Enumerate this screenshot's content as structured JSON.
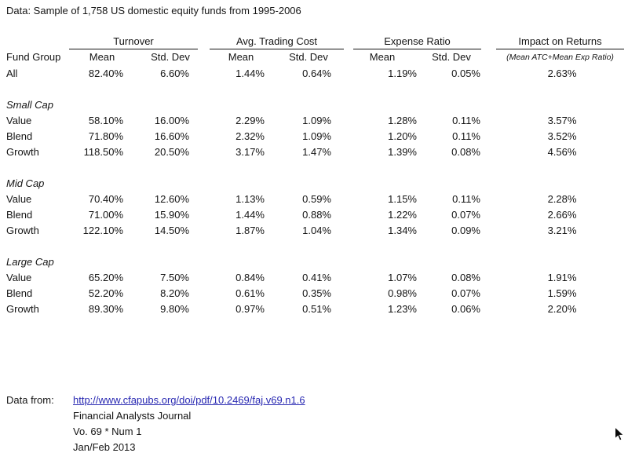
{
  "title": "Data: Sample of 1,758 US domestic equity funds from 1995-2006",
  "table": {
    "row_header": "Fund Group",
    "groups": [
      {
        "label": "Turnover",
        "sub": [
          "Mean",
          "Std. Dev"
        ]
      },
      {
        "label": "Avg. Trading Cost",
        "sub": [
          "Mean",
          "Std. Dev"
        ]
      },
      {
        "label": "Expense Ratio",
        "sub": [
          "Mean",
          "Std. Dev"
        ]
      },
      {
        "label": "Impact on Returns",
        "sub": [
          "(Mean ATC+Mean Exp Ratio)"
        ]
      }
    ],
    "rows": [
      {
        "type": "data",
        "label": "All",
        "values": [
          "82.40%",
          "6.60%",
          "1.44%",
          "0.64%",
          "1.19%",
          "0.05%",
          "2.63%"
        ]
      },
      {
        "type": "spacer"
      },
      {
        "type": "section",
        "label": "Small Cap"
      },
      {
        "type": "data",
        "label": "Value",
        "values": [
          "58.10%",
          "16.00%",
          "2.29%",
          "1.09%",
          "1.28%",
          "0.11%",
          "3.57%"
        ]
      },
      {
        "type": "data",
        "label": "Blend",
        "values": [
          "71.80%",
          "16.60%",
          "2.32%",
          "1.09%",
          "1.20%",
          "0.11%",
          "3.52%"
        ]
      },
      {
        "type": "data",
        "label": "Growth",
        "values": [
          "118.50%",
          "20.50%",
          "3.17%",
          "1.47%",
          "1.39%",
          "0.08%",
          "4.56%"
        ]
      },
      {
        "type": "spacer"
      },
      {
        "type": "section",
        "label": "Mid Cap"
      },
      {
        "type": "data",
        "label": "Value",
        "values": [
          "70.40%",
          "12.60%",
          "1.13%",
          "0.59%",
          "1.15%",
          "0.11%",
          "2.28%"
        ]
      },
      {
        "type": "data",
        "label": "Blend",
        "values": [
          "71.00%",
          "15.90%",
          "1.44%",
          "0.88%",
          "1.22%",
          "0.07%",
          "2.66%"
        ]
      },
      {
        "type": "data",
        "label": "Growth",
        "values": [
          "122.10%",
          "14.50%",
          "1.87%",
          "1.04%",
          "1.34%",
          "0.09%",
          "3.21%"
        ]
      },
      {
        "type": "spacer"
      },
      {
        "type": "section",
        "label": "Large Cap"
      },
      {
        "type": "data",
        "label": "Value",
        "values": [
          "65.20%",
          "7.50%",
          "0.84%",
          "0.41%",
          "1.07%",
          "0.08%",
          "1.91%"
        ]
      },
      {
        "type": "data",
        "label": "Blend",
        "values": [
          "52.20%",
          "8.20%",
          "0.61%",
          "0.35%",
          "0.98%",
          "0.07%",
          "1.59%"
        ]
      },
      {
        "type": "data",
        "label": "Growth",
        "values": [
          "89.30%",
          "9.80%",
          "0.97%",
          "0.51%",
          "1.23%",
          "0.06%",
          "2.20%"
        ]
      }
    ]
  },
  "footer": {
    "label": "Data from:",
    "link": "http://www.cfapubs.org/doi/pdf/10.2469/faj.v69.n1.6",
    "lines": [
      "Financial Analysts Journal",
      "Vo. 69 * Num 1",
      "Jan/Feb 2013"
    ]
  },
  "colors": {
    "background": "#ffffff",
    "text": "#141414",
    "link_blue": "#2929b2",
    "header_rule": "#141414"
  },
  "cursor": {
    "icon": "arrow-pointer"
  }
}
